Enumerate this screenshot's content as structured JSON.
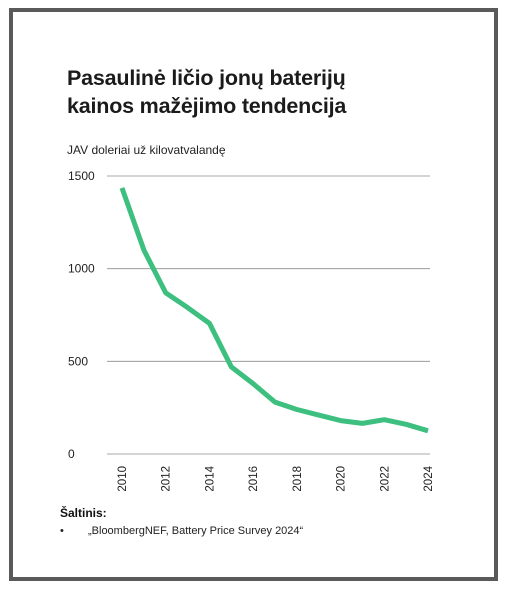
{
  "title_lines": [
    "Pasaulinė ličio jonų baterijų",
    "kainos mažėjimo tendencija"
  ],
  "colors": {
    "line": "#3dbf7f",
    "grid": "#8c8c8c",
    "frame": "#5a5a5a"
  },
  "chart_data": {
    "type": "line",
    "title": "Pasaulinė ličio jonų baterijų kainos mažėjimo tendencija",
    "ylabel": "JAV doleriai už kilovatvalandę",
    "xlabel": "",
    "ylim": [
      0,
      1500
    ],
    "xlim": [
      2010,
      2024
    ],
    "y_ticks": [
      0,
      500,
      1000,
      1500
    ],
    "x_ticks": [
      "2010",
      "2012",
      "2014",
      "2016",
      "2018",
      "2020",
      "2022",
      "2024"
    ],
    "grid": "horizontal",
    "series": [
      {
        "x": [
          2010,
          2011,
          2012,
          2013,
          2014,
          2015,
          2016,
          2017,
          2018,
          2019,
          2020,
          2021,
          2022,
          2023,
          2024
        ],
        "values": [
          1436,
          1100,
          870,
          790,
          705,
          470,
          380,
          280,
          240,
          210,
          180,
          165,
          185,
          160,
          125
        ]
      }
    ]
  },
  "source": {
    "heading": "Šaltinis:",
    "bullet": "•",
    "items": [
      "„BloombergNEF, Battery Price Survey 2024“"
    ]
  }
}
